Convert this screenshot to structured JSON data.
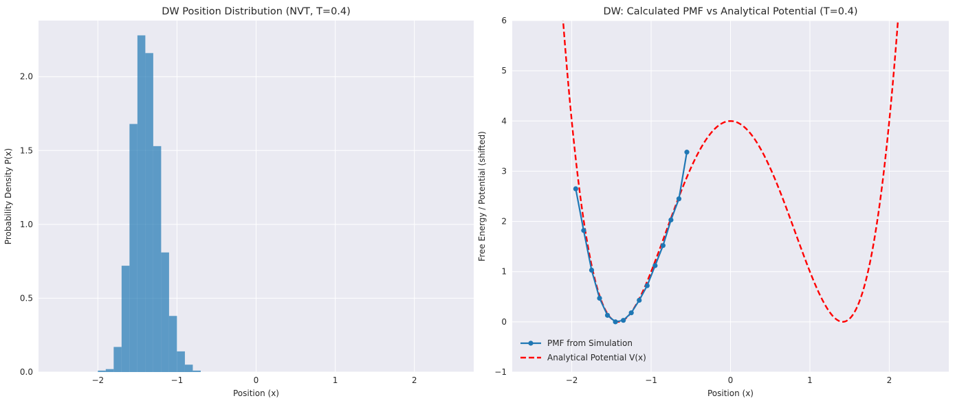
{
  "chart_data": [
    {
      "type": "bar",
      "title": "DW Position Distribution (NVT, T=0.4)",
      "xlabel": "Position (x)",
      "ylabel": "Probability Density P(x)",
      "xlim": [
        -2.75,
        2.75
      ],
      "ylim": [
        0,
        2.38
      ],
      "xticks": [
        -2,
        -1,
        0,
        1,
        2
      ],
      "xtick_labels": [
        "−2",
        "−1",
        "0",
        "1",
        "2"
      ],
      "yticks": [
        0,
        0.5,
        1,
        1.5,
        2
      ],
      "ytick_labels": [
        "0.0",
        "0.5",
        "1.0",
        "1.5",
        "2.0"
      ],
      "grid": true,
      "bar_color": "#1f77b4",
      "bin_width": 0.1,
      "bin_left_edges": [
        -2.0,
        -1.9,
        -1.8,
        -1.7,
        -1.6,
        -1.5,
        -1.4,
        -1.3,
        -1.2,
        -1.1,
        -1.0,
        -0.9,
        -0.8
      ],
      "values": [
        0.01,
        0.02,
        0.17,
        0.72,
        1.68,
        2.28,
        2.16,
        1.53,
        0.81,
        0.38,
        0.14,
        0.05,
        0.01
      ]
    },
    {
      "type": "line",
      "title": "DW: Calculated PMF vs Analytical Potential (T=0.4)",
      "xlabel": "Position (x)",
      "ylabel": "Free Energy / Potential (shifted)",
      "xlim": [
        -2.75,
        2.75
      ],
      "ylim": [
        -1,
        6
      ],
      "xticks": [
        -2,
        -1,
        0,
        1,
        2
      ],
      "xtick_labels": [
        "−2",
        "−1",
        "0",
        "1",
        "2"
      ],
      "yticks": [
        -1,
        0,
        1,
        2,
        3,
        4,
        5,
        6
      ],
      "ytick_labels": [
        "−1",
        "0",
        "1",
        "2",
        "3",
        "4",
        "5",
        "6"
      ],
      "grid": true,
      "legend_position": "bottom-left",
      "series": [
        {
          "name": "PMF from Simulation",
          "color": "#1f77b4",
          "style": "solid-marker",
          "x": [
            -1.95,
            -1.85,
            -1.75,
            -1.65,
            -1.55,
            -1.45,
            -1.35,
            -1.25,
            -1.15,
            -1.05,
            -0.95,
            -0.85,
            -0.75,
            -0.65,
            -0.55
          ],
          "y": [
            2.65,
            1.82,
            1.03,
            0.47,
            0.13,
            0.0,
            0.03,
            0.18,
            0.43,
            0.72,
            1.12,
            1.52,
            2.03,
            2.45,
            3.38
          ]
        },
        {
          "name": "Analytical Potential V(x)",
          "color": "#ff0000",
          "style": "dashed",
          "function": "V(x) = x^4 - 4x^2 + 4",
          "x_range": [
            -2.6,
            2.6
          ]
        }
      ]
    }
  ]
}
